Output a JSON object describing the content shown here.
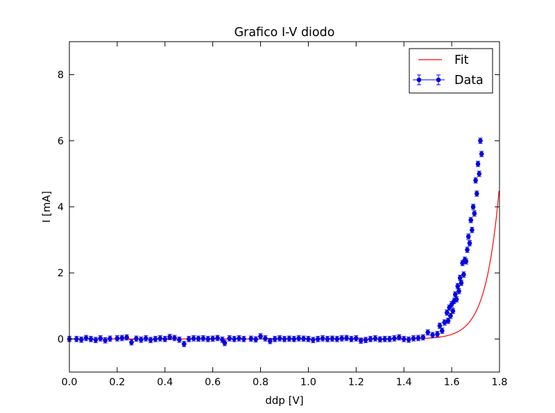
{
  "chart_data": {
    "type": "scatter",
    "title": "Grafico I-V diodo",
    "xlabel": "ddp [V]",
    "ylabel": "I [mA]",
    "xlim": [
      0.0,
      1.8
    ],
    "ylim": [
      -1.0,
      9.0
    ],
    "xticks": [
      "0.0",
      "0.2",
      "0.4",
      "0.6",
      "0.8",
      "1.0",
      "1.2",
      "1.4",
      "1.6",
      "1.8"
    ],
    "yticks": [
      "0",
      "2",
      "4",
      "6",
      "8"
    ],
    "grid": false,
    "legend": {
      "placement": "top-right",
      "entries": [
        "Fit",
        "Data"
      ]
    },
    "colors": {
      "fit": "#ff0000",
      "data": "#0000ff",
      "axes": "#000000"
    },
    "series": [
      {
        "name": "Data",
        "kind": "errorbar-scatter",
        "x": [
          0.0,
          0.03,
          0.05,
          0.07,
          0.09,
          0.11,
          0.13,
          0.15,
          0.17,
          0.2,
          0.22,
          0.24,
          0.26,
          0.28,
          0.3,
          0.32,
          0.34,
          0.36,
          0.38,
          0.4,
          0.42,
          0.44,
          0.46,
          0.48,
          0.5,
          0.52,
          0.54,
          0.56,
          0.58,
          0.6,
          0.62,
          0.64,
          0.65,
          0.67,
          0.69,
          0.71,
          0.73,
          0.76,
          0.78,
          0.8,
          0.82,
          0.84,
          0.86,
          0.88,
          0.9,
          0.92,
          0.94,
          0.96,
          0.98,
          1.0,
          1.02,
          1.04,
          1.06,
          1.08,
          1.1,
          1.12,
          1.14,
          1.16,
          1.18,
          1.2,
          1.22,
          1.24,
          1.26,
          1.28,
          1.3,
          1.32,
          1.34,
          1.36,
          1.38,
          1.4,
          1.42,
          1.44,
          1.46,
          1.48,
          1.5,
          1.52,
          1.54,
          1.55,
          1.56,
          1.57,
          1.58,
          1.585,
          1.59,
          1.595,
          1.6,
          1.605,
          1.61,
          1.615,
          1.62,
          1.625,
          1.63,
          1.635,
          1.64,
          1.645,
          1.65,
          1.655,
          1.66,
          1.665,
          1.67,
          1.675,
          1.68,
          1.685,
          1.69,
          1.695,
          1.7,
          1.705,
          1.71,
          1.715,
          1.72,
          1.725
        ],
        "y": [
          0.0,
          0.0,
          -0.02,
          0.03,
          0.0,
          -0.03,
          0.02,
          -0.04,
          0.01,
          0.02,
          0.03,
          0.05,
          -0.1,
          0.01,
          -0.02,
          0.02,
          -0.03,
          0.0,
          0.02,
          0.0,
          0.06,
          0.03,
          -0.02,
          -0.15,
          0.0,
          0.02,
          0.01,
          0.02,
          0.0,
          0.01,
          0.03,
          -0.02,
          -0.12,
          0.02,
          0.0,
          0.02,
          0.0,
          0.01,
          -0.01,
          0.08,
          0.02,
          -0.06,
          0.0,
          0.02,
          0.0,
          0.01,
          0.0,
          0.02,
          0.01,
          0.0,
          -0.03,
          0.0,
          0.02,
          0.0,
          0.01,
          0.0,
          0.02,
          0.03,
          0.0,
          0.02,
          -0.05,
          -0.03,
          0.0,
          0.02,
          -0.01,
          0.0,
          0.0,
          0.02,
          0.05,
          0.0,
          -0.02,
          0.02,
          0.03,
          0.05,
          0.2,
          0.12,
          0.15,
          0.4,
          0.25,
          0.5,
          0.8,
          0.55,
          0.95,
          0.7,
          1.05,
          0.85,
          1.15,
          1.35,
          1.2,
          1.6,
          1.45,
          1.85,
          1.7,
          2.3,
          1.95,
          2.4,
          2.35,
          2.7,
          3.1,
          2.9,
          3.6,
          3.3,
          4.0,
          3.8,
          4.8,
          4.4,
          5.3,
          5.0,
          6.0,
          5.6
        ],
        "x_err": 0.008,
        "y_err": 0.08
      },
      {
        "name": "Fit",
        "kind": "line",
        "model": "shockley",
        "params": {
          "I0_mA": 1e-13,
          "nVt_V": 0.0572
        }
      }
    ]
  }
}
